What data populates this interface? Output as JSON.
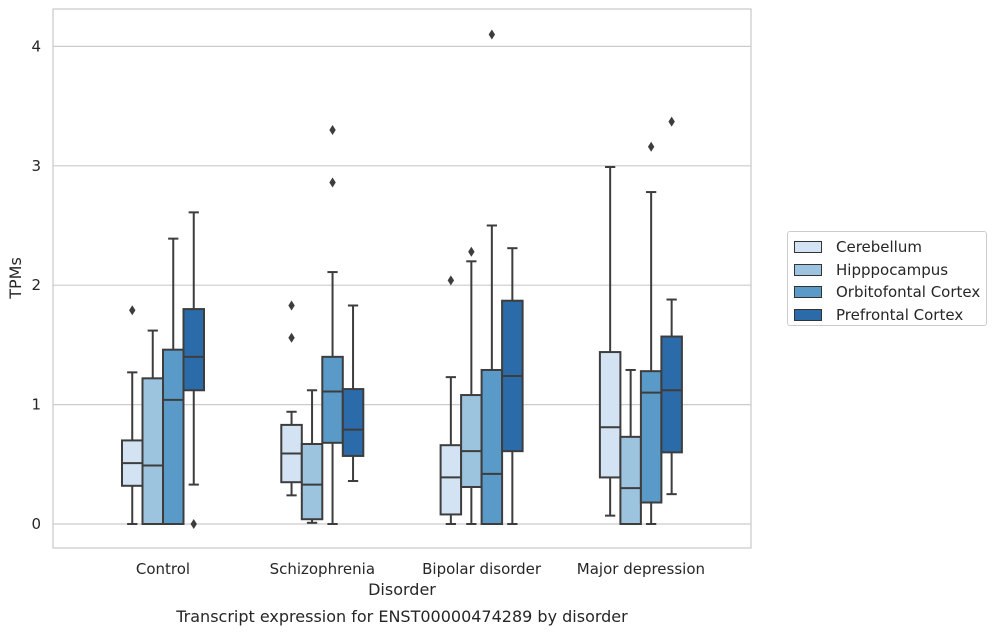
{
  "chart_data": {
    "type": "boxplot",
    "caption": "Transcript expression for ENST00000474289 by disorder",
    "xlabel": "Disorder",
    "ylabel": "TPMs",
    "ylim": [
      -0.2,
      4.3
    ],
    "yticks": [
      0,
      1,
      2,
      3,
      4
    ],
    "grid": true,
    "legend_position": "right",
    "categories": [
      "Control",
      "Schizophrenia",
      "Bipolar disorder",
      "Major depression"
    ],
    "series": [
      {
        "name": "Cerebellum",
        "color": "#d4e3f3",
        "boxes": [
          {
            "whisker_low": 0.0,
            "q1": 0.32,
            "median": 0.51,
            "q3": 0.7,
            "whisker_high": 1.27,
            "outliers": [
              1.79
            ]
          },
          {
            "whisker_low": 0.24,
            "q1": 0.35,
            "median": 0.59,
            "q3": 0.83,
            "whisker_high": 0.94,
            "outliers": [
              1.56,
              1.83
            ]
          },
          {
            "whisker_low": 0.0,
            "q1": 0.08,
            "median": 0.39,
            "q3": 0.66,
            "whisker_high": 1.23,
            "outliers": [
              2.04
            ]
          },
          {
            "whisker_low": 0.07,
            "q1": 0.39,
            "median": 0.81,
            "q3": 1.44,
            "whisker_high": 2.99,
            "outliers": []
          }
        ]
      },
      {
        "name": "Hipppocampus",
        "color": "#9cc4df",
        "boxes": [
          {
            "whisker_low": 0.0,
            "q1": 0.0,
            "median": 0.49,
            "q3": 1.22,
            "whisker_high": 1.62,
            "outliers": []
          },
          {
            "whisker_low": 0.01,
            "q1": 0.04,
            "median": 0.33,
            "q3": 0.67,
            "whisker_high": 1.12,
            "outliers": []
          },
          {
            "whisker_low": 0.0,
            "q1": 0.31,
            "median": 0.61,
            "q3": 1.08,
            "whisker_high": 2.2,
            "outliers": [
              2.28
            ]
          },
          {
            "whisker_low": 0.0,
            "q1": 0.0,
            "median": 0.3,
            "q3": 0.73,
            "whisker_high": 1.29,
            "outliers": []
          }
        ]
      },
      {
        "name": "Orbitofontal Cortex",
        "color": "#5a9ac8",
        "boxes": [
          {
            "whisker_low": 0.0,
            "q1": 0.0,
            "median": 1.04,
            "q3": 1.46,
            "whisker_high": 2.39,
            "outliers": []
          },
          {
            "whisker_low": 0.0,
            "q1": 0.68,
            "median": 1.11,
            "q3": 1.4,
            "whisker_high": 2.11,
            "outliers": [
              2.86,
              3.3
            ]
          },
          {
            "whisker_low": 0.0,
            "q1": 0.0,
            "median": 0.42,
            "q3": 1.29,
            "whisker_high": 2.5,
            "outliers": [
              4.1
            ]
          },
          {
            "whisker_low": 0.0,
            "q1": 0.18,
            "median": 1.1,
            "q3": 1.28,
            "whisker_high": 2.78,
            "outliers": [
              3.16
            ]
          }
        ]
      },
      {
        "name": "Prefrontal Cortex",
        "color": "#2c6ba9",
        "boxes": [
          {
            "whisker_low": 0.33,
            "q1": 1.12,
            "median": 1.4,
            "q3": 1.8,
            "whisker_high": 2.61,
            "outliers": [
              0.0
            ]
          },
          {
            "whisker_low": 0.36,
            "q1": 0.57,
            "median": 0.79,
            "q3": 1.13,
            "whisker_high": 1.83,
            "outliers": []
          },
          {
            "whisker_low": 0.0,
            "q1": 0.61,
            "median": 1.24,
            "q3": 1.87,
            "whisker_high": 2.31,
            "outliers": []
          },
          {
            "whisker_low": 0.25,
            "q1": 0.6,
            "median": 1.12,
            "q3": 1.57,
            "whisker_high": 1.88,
            "outliers": [
              3.37
            ]
          }
        ]
      }
    ]
  }
}
